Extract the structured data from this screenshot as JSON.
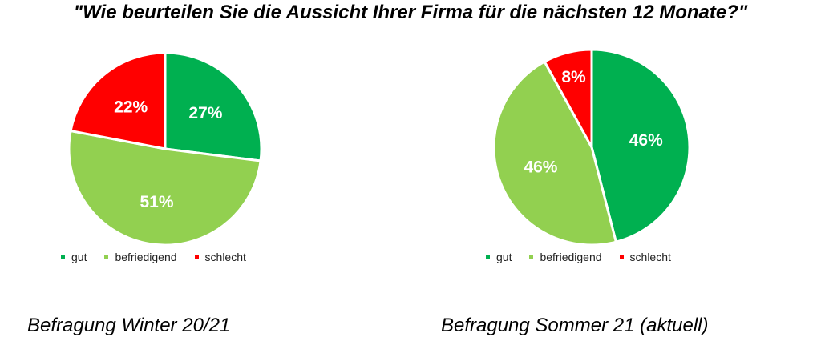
{
  "title": "\"Wie beurteilen Sie die Aussicht Ihrer Firma für die nächsten 12 Monate?\"",
  "colors": {
    "gut": "#00b050",
    "befriedigend": "#92d050",
    "schlecht": "#ff0000"
  },
  "chart_data": [
    {
      "type": "pie",
      "caption": "Befragung Winter 20/21",
      "categories": [
        "gut",
        "befriedigend",
        "schlecht"
      ],
      "values": [
        27,
        51,
        22
      ],
      "labels": [
        "27%",
        "51%",
        "22%"
      ],
      "legend": "bottom"
    },
    {
      "type": "pie",
      "caption": "Befragung Sommer 21 (aktuell)",
      "categories": [
        "gut",
        "befriedigend",
        "schlecht"
      ],
      "values": [
        46,
        46,
        8
      ],
      "labels": [
        "46%",
        "46%",
        "8%"
      ],
      "legend": "bottom"
    }
  ]
}
